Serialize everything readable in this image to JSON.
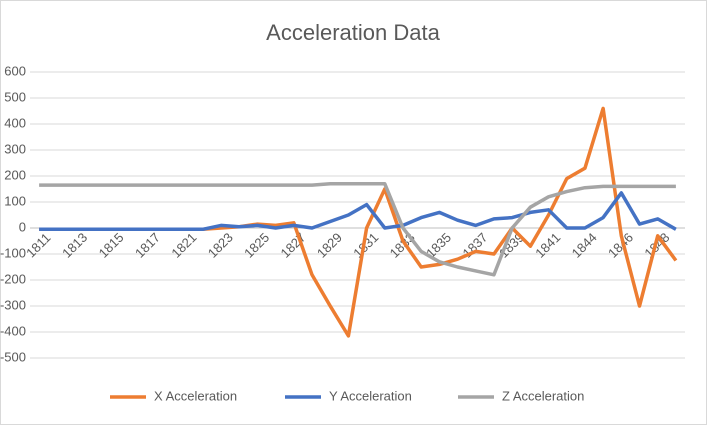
{
  "chart_data": {
    "type": "line",
    "title": "Acceleration Data",
    "categories": [
      "1811",
      null,
      "1813",
      null,
      "1815",
      null,
      "1817",
      null,
      "1821",
      null,
      "1823",
      null,
      "1825",
      null,
      "1827",
      null,
      "1829",
      null,
      "1831",
      null,
      "1833",
      null,
      "1835",
      null,
      "1837",
      null,
      "1839",
      null,
      "1841",
      null,
      "1844",
      null,
      "1846",
      null,
      "1848",
      null
    ],
    "series": [
      {
        "name": "X Acceleration",
        "color": "#ed7d31",
        "values": [
          -5,
          -5,
          -5,
          -5,
          -5,
          -5,
          -5,
          -5,
          -5,
          -5,
          0,
          5,
          15,
          10,
          20,
          -180,
          -300,
          -415,
          0,
          150,
          -50,
          -150,
          -140,
          -120,
          -90,
          -100,
          0,
          -70,
          50,
          190,
          230,
          460,
          -30,
          -300,
          -30,
          -125
        ]
      },
      {
        "name": "Y Acceleration",
        "color": "#4472c4",
        "values": [
          -5,
          -5,
          -5,
          -5,
          -5,
          -5,
          -5,
          -5,
          -5,
          -5,
          10,
          5,
          10,
          0,
          10,
          0,
          25,
          50,
          90,
          0,
          10,
          40,
          60,
          30,
          10,
          35,
          40,
          60,
          70,
          0,
          0,
          40,
          135,
          15,
          35,
          -5
        ]
      },
      {
        "name": "Z Acceleration",
        "color": "#a5a5a5",
        "values": [
          165,
          165,
          165,
          165,
          165,
          165,
          165,
          165,
          165,
          165,
          165,
          165,
          165,
          165,
          165,
          165,
          170,
          170,
          170,
          170,
          0,
          -90,
          -130,
          -150,
          -165,
          -180,
          0,
          80,
          120,
          140,
          155,
          160,
          160,
          160,
          160,
          160
        ]
      }
    ],
    "ylim": [
      -500,
      600
    ],
    "yticks": [
      -500,
      -400,
      -300,
      -200,
      -100,
      0,
      100,
      200,
      300,
      400,
      500,
      600
    ],
    "grid": true,
    "legend": "bottom"
  }
}
